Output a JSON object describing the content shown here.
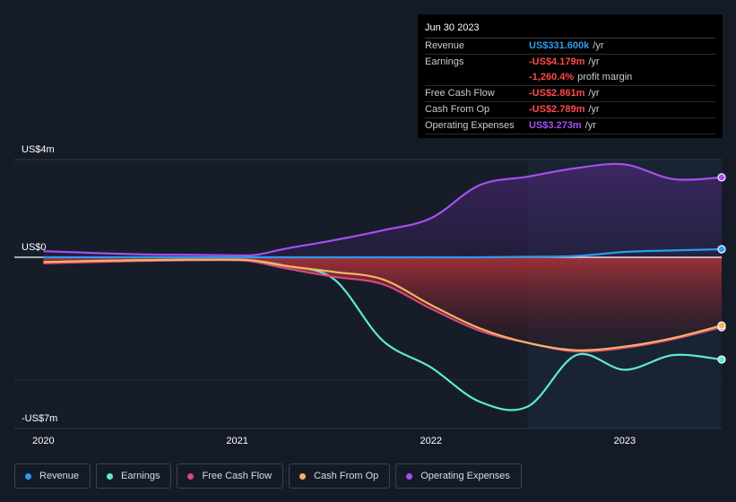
{
  "colors": {
    "revenue": "#2d9bf0",
    "earnings": "#5ee8d4",
    "fcf": "#d9487a",
    "cfo": "#f5b265",
    "opex": "#a64ff0",
    "value_blue": "#2d9bf0",
    "value_red": "#ff4b4b",
    "value_purple": "#a64ff0"
  },
  "tooltip": {
    "date": "Jun 30 2023",
    "rows": [
      {
        "label": "Revenue",
        "value": "US$331.600k",
        "unit": "/yr",
        "color_key": "value_blue"
      },
      {
        "label": "Earnings",
        "value": "-US$4.179m",
        "unit": "/yr",
        "color_key": "value_red"
      },
      {
        "label": "",
        "value": "-1,260.4%",
        "unit": "profit margin",
        "color_key": "value_red"
      },
      {
        "label": "Free Cash Flow",
        "value": "-US$2.861m",
        "unit": "/yr",
        "color_key": "value_red"
      },
      {
        "label": "Cash From Op",
        "value": "-US$2.789m",
        "unit": "/yr",
        "color_key": "value_red"
      },
      {
        "label": "Operating Expenses",
        "value": "US$3.273m",
        "unit": "/yr",
        "color_key": "value_purple"
      }
    ]
  },
  "legend": [
    {
      "label": "Revenue",
      "color_key": "revenue"
    },
    {
      "label": "Earnings",
      "color_key": "earnings"
    },
    {
      "label": "Free Cash Flow",
      "color_key": "fcf"
    },
    {
      "label": "Cash From Op",
      "color_key": "cfo"
    },
    {
      "label": "Operating Expenses",
      "color_key": "opex"
    }
  ],
  "chart_data": {
    "type": "area",
    "title": "",
    "xlabel": "",
    "ylabel": "",
    "unit": "US$ millions",
    "ylim": [
      -7,
      4
    ],
    "y_tick_labels": [
      {
        "value": 4,
        "label": "US$4m"
      },
      {
        "value": 0,
        "label": "US$0"
      },
      {
        "value": -7,
        "label": "-US$7m"
      }
    ],
    "x_tick_labels": [
      {
        "value": 2020.0,
        "label": "2020"
      },
      {
        "value": 2021.0,
        "label": "2021"
      },
      {
        "value": 2022.0,
        "label": "2022"
      },
      {
        "value": 2023.0,
        "label": "2023"
      }
    ],
    "xlim": [
      2019.85,
      2023.5
    ],
    "highlight_start": 2022.5,
    "x": [
      2020.0,
      2020.25,
      2020.5,
      2020.75,
      2021.0,
      2021.1,
      2021.25,
      2021.5,
      2021.75,
      2022.0,
      2022.25,
      2022.5,
      2022.75,
      2023.0,
      2023.25,
      2023.5
    ],
    "series": [
      {
        "name": "Revenue",
        "key": "revenue",
        "values": [
          0.0,
          0.0,
          0.0,
          0.0,
          0.0,
          0.0,
          0.0,
          0.0,
          0.0,
          0.0,
          0.0,
          0.02,
          0.05,
          0.22,
          0.28,
          0.33
        ]
      },
      {
        "name": "Earnings",
        "key": "earnings",
        "values": [
          -0.2,
          -0.15,
          -0.12,
          -0.1,
          -0.1,
          -0.15,
          -0.35,
          -0.9,
          -3.4,
          -4.5,
          -5.9,
          -6.1,
          -4.0,
          -4.6,
          -4.0,
          -4.18
        ]
      },
      {
        "name": "Free Cash Flow",
        "key": "fcf",
        "values": [
          -0.25,
          -0.2,
          -0.15,
          -0.12,
          -0.12,
          -0.2,
          -0.45,
          -0.8,
          -1.1,
          -2.1,
          -3.0,
          -3.5,
          -3.85,
          -3.7,
          -3.35,
          -2.86
        ]
      },
      {
        "name": "Cash From Op",
        "key": "cfo",
        "values": [
          -0.2,
          -0.15,
          -0.12,
          -0.1,
          -0.1,
          -0.15,
          -0.35,
          -0.6,
          -0.9,
          -1.95,
          -2.9,
          -3.5,
          -3.8,
          -3.65,
          -3.3,
          -2.79
        ]
      },
      {
        "name": "Operating Expenses",
        "key": "opex",
        "values": [
          0.25,
          0.18,
          0.12,
          0.1,
          0.08,
          0.1,
          0.35,
          0.7,
          1.1,
          1.6,
          2.95,
          3.3,
          3.65,
          3.8,
          3.2,
          3.27
        ]
      }
    ]
  }
}
